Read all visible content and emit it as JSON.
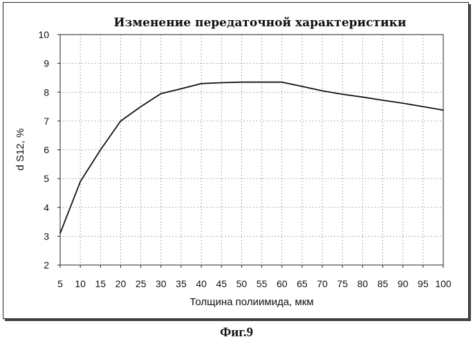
{
  "figure_caption": "Фиг.9",
  "chart_data": {
    "type": "line",
    "title": "Изменение передаточной характеристики",
    "xlabel": "Толщина полиимида, мкм",
    "ylabel": "d S12, %",
    "xlim": [
      5,
      100
    ],
    "ylim": [
      2,
      10
    ],
    "x_ticks": [
      5,
      10,
      15,
      20,
      25,
      30,
      35,
      40,
      45,
      50,
      55,
      60,
      65,
      70,
      75,
      80,
      85,
      90,
      95,
      100
    ],
    "y_ticks": [
      2,
      3,
      4,
      5,
      6,
      7,
      8,
      9,
      10
    ],
    "grid": "dotted",
    "legend": "none",
    "series": [
      {
        "x": [
          5,
          10,
          15,
          20,
          25,
          30,
          35,
          40,
          45,
          50,
          55,
          60,
          65,
          70,
          75,
          80,
          85,
          90,
          95,
          100
        ],
        "y": [
          3.1,
          4.9,
          6.0,
          7.0,
          7.5,
          7.95,
          8.12,
          8.3,
          8.33,
          8.35,
          8.35,
          8.35,
          8.2,
          8.05,
          7.93,
          7.83,
          7.72,
          7.62,
          7.5,
          7.38
        ],
        "color": "#111111"
      }
    ]
  }
}
